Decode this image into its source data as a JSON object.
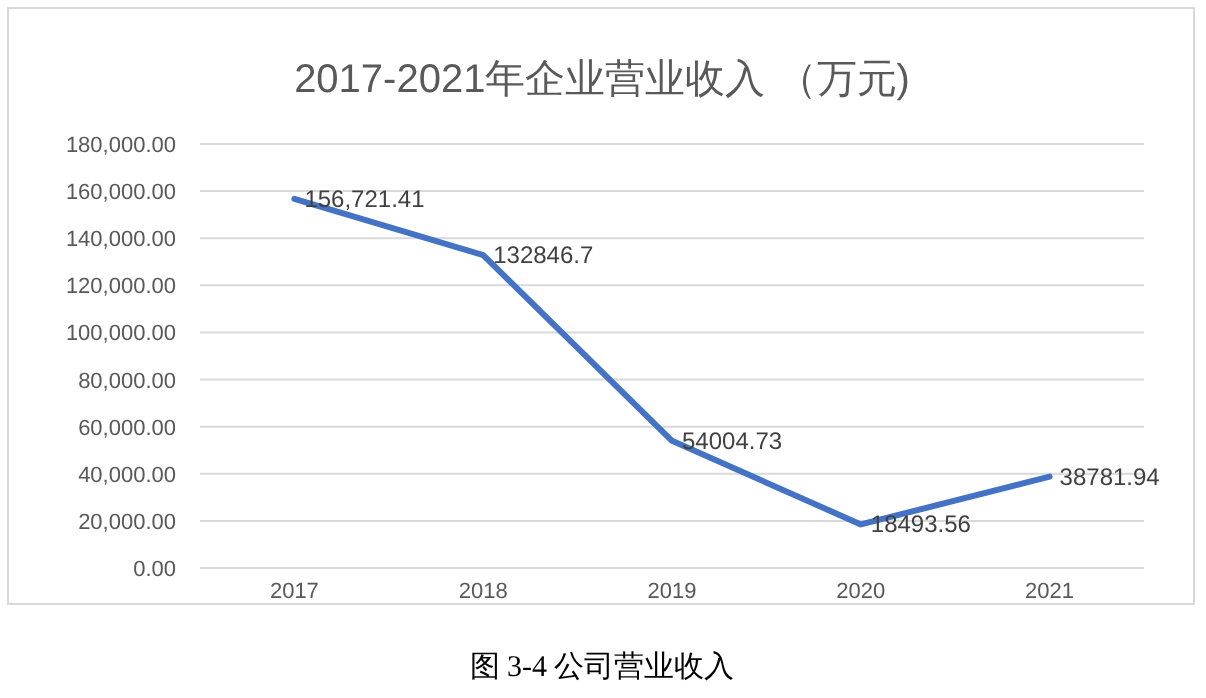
{
  "chart_data": {
    "type": "line",
    "title": "2017-2021年企业营业收入 （万元)",
    "categories": [
      "2017",
      "2018",
      "2019",
      "2020",
      "2021"
    ],
    "series": [
      {
        "color": "#4472c4",
        "values": [
          156721.41,
          132846.7,
          54004.73,
          18493.56,
          38781.94
        ],
        "value_labels": [
          "156,721.41",
          "132846.7",
          "54004.73",
          "18493.56",
          "38781.94"
        ]
      }
    ],
    "ylim": [
      0,
      180000
    ],
    "yticks": [
      {
        "value": 0,
        "label": "0.00"
      },
      {
        "value": 20000,
        "label": "20,000.00"
      },
      {
        "value": 40000,
        "label": "40,000.00"
      },
      {
        "value": 60000,
        "label": "60,000.00"
      },
      {
        "value": 80000,
        "label": "80,000.00"
      },
      {
        "value": 100000,
        "label": "100,000.00"
      },
      {
        "value": 120000,
        "label": "120,000.00"
      },
      {
        "value": 140000,
        "label": "140,000.00"
      },
      {
        "value": 160000,
        "label": "160,000.00"
      },
      {
        "value": 180000,
        "label": "180,000.00"
      }
    ],
    "grid": "y",
    "marker": "none",
    "line_style": "solid",
    "annotations": [
      "图 3-4 公司营业收入"
    ]
  }
}
